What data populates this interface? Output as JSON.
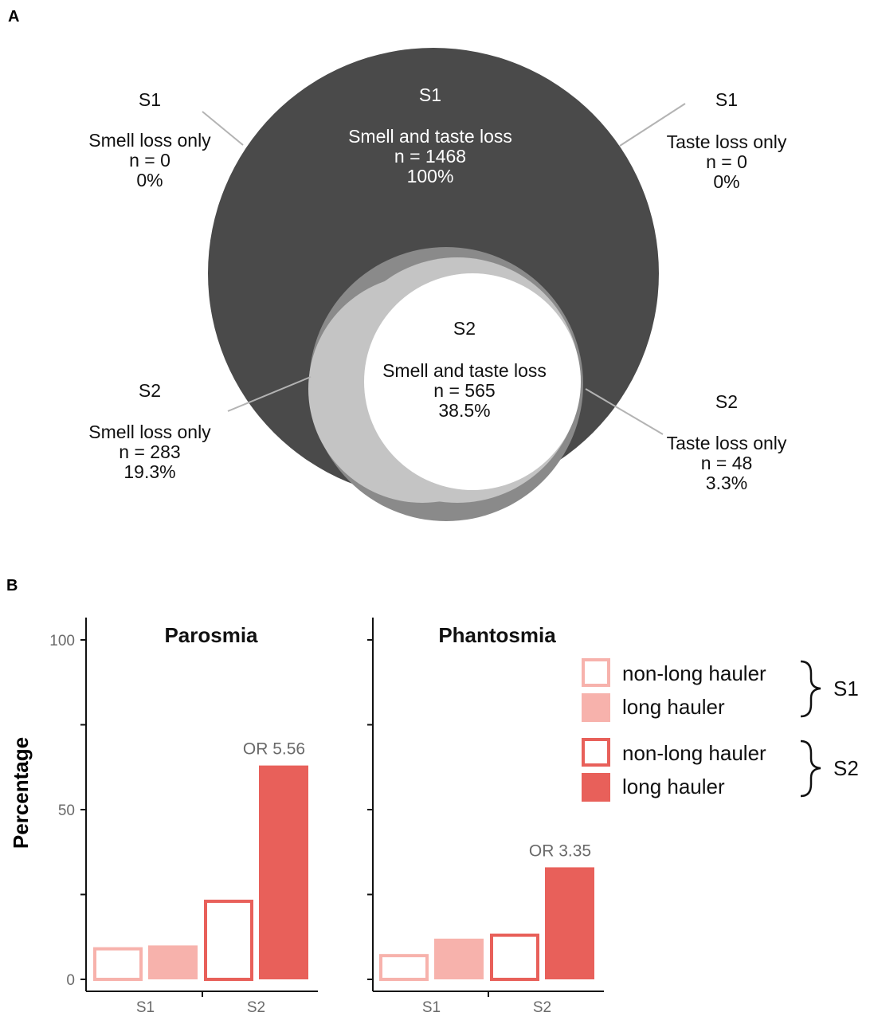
{
  "panel_a": {
    "letter": "A",
    "s1_top": "S1",
    "s1_left_group": "S1",
    "s1_left_label": "Smell loss only",
    "s1_left_n": "n = 0",
    "s1_left_pct": "0%",
    "s1_center_label": "Smell and taste loss",
    "s1_center_n": "n = 1468",
    "s1_center_pct": "100%",
    "s1_right_group": "S1",
    "s1_right_label": "Taste loss only",
    "s1_right_n": "n = 0",
    "s1_right_pct": "0%",
    "s2_center_group": "S2",
    "s2_center_label": "Smell and taste loss",
    "s2_center_n": "n = 565",
    "s2_center_pct": "38.5%",
    "s2_left_group": "S2",
    "s2_left_label": "Smell loss only",
    "s2_left_n": "n = 283",
    "s2_left_pct": "19.3%",
    "s2_right_group": "S2",
    "s2_right_label": "Taste loss only",
    "s2_right_n": "n = 48",
    "s2_right_pct": "3.3%",
    "colors": {
      "outer": "#4a4a4a",
      "smell_only": "#c4c4c4",
      "taste_only": "#8a8a8a",
      "both": "#ffffff"
    }
  },
  "panel_b": {
    "letter": "B",
    "ylabel": "Percentage",
    "legend": {
      "s1_nonlong": "non-long hauler",
      "s1_long": "long hauler",
      "s2_nonlong": "non-long hauler",
      "s2_long": "long hauler",
      "s1_group": "S1",
      "s2_group": "S2"
    },
    "colors": {
      "s1_light": "#f7b2ac",
      "s2_dark": "#e8605a"
    }
  },
  "chart_data": [
    {
      "type": "bar",
      "title": "Parosmia",
      "categories": [
        "S1",
        "S2"
      ],
      "ylabel": "Percentage",
      "ylim": [
        0,
        100
      ],
      "yticks": [
        "0",
        "50",
        "100"
      ],
      "series": [
        {
          "name": "non-long hauler",
          "values": [
            9,
            23
          ]
        },
        {
          "name": "long hauler",
          "values": [
            10,
            63
          ]
        }
      ],
      "annotations": [
        {
          "category": "S2",
          "text": "OR 5.56"
        }
      ]
    },
    {
      "type": "bar",
      "title": "Phantosmia",
      "categories": [
        "S1",
        "S2"
      ],
      "ylabel": "Percentage",
      "ylim": [
        0,
        100
      ],
      "series": [
        {
          "name": "non-long hauler",
          "values": [
            7,
            13
          ]
        },
        {
          "name": "long hauler",
          "values": [
            12,
            33
          ]
        }
      ],
      "annotations": [
        {
          "category": "S2",
          "text": "OR 3.35"
        }
      ]
    }
  ]
}
